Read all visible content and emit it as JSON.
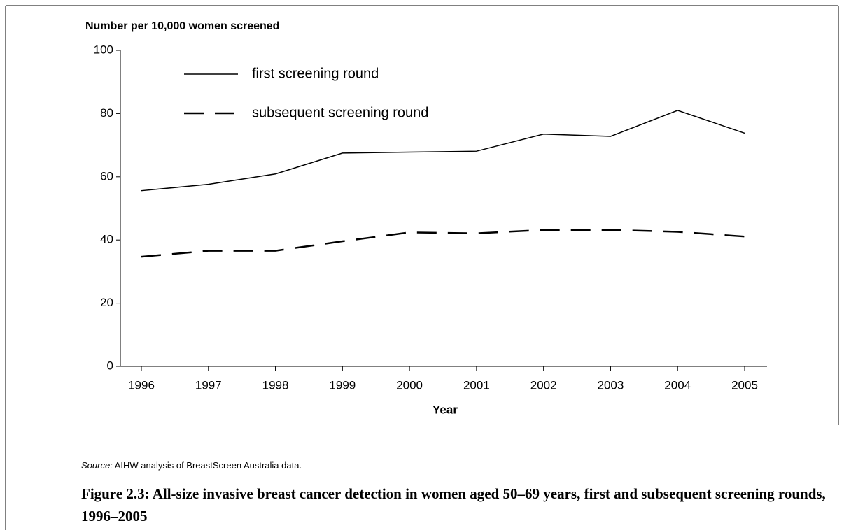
{
  "chart_data": {
    "type": "line",
    "y_axis_label": "Number per 10,000 women screened",
    "x_axis_label": "Year",
    "categories": [
      "1996",
      "1997",
      "1998",
      "1999",
      "2000",
      "2001",
      "2002",
      "2003",
      "2004",
      "2005"
    ],
    "series": [
      {
        "name": "first screening round",
        "color": "#000000",
        "line_style": "solid",
        "values": [
          55.6,
          57.6,
          60.9,
          67.5,
          67.8,
          68.1,
          73.5,
          72.8,
          81.0,
          73.8
        ]
      },
      {
        "name": "subsequent screening round",
        "color": "#000000",
        "line_style": "dashed",
        "values": [
          34.7,
          36.6,
          36.6,
          39.6,
          42.4,
          42.1,
          43.2,
          43.2,
          42.6,
          41.1
        ]
      }
    ],
    "ylim": [
      0,
      100
    ],
    "yticks": [
      0,
      20,
      40,
      60,
      80,
      100
    ],
    "legend": "top-left",
    "source_label": "Source:",
    "source": "AIHW analysis of BreastScreen Australia data.",
    "caption": "Figure 2.3: All-size invasive breast cancer detection in women aged 50–69 years, first and subsequent screening rounds, 1996–2005"
  }
}
